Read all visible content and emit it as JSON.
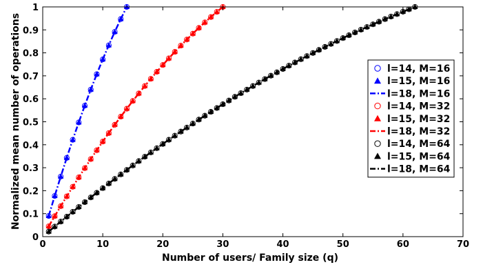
{
  "chart_data": {
    "type": "line",
    "title": "",
    "xlabel": "Number of users/ Family size (q)",
    "ylabel": "Normalized mean number of operations",
    "xlim": [
      0,
      70
    ],
    "ylim": [
      0,
      1
    ],
    "xticks": [
      0,
      10,
      20,
      30,
      40,
      50,
      60,
      70
    ],
    "yticks": [
      0,
      0.1,
      0.2,
      0.3,
      0.4,
      0.5,
      0.6,
      0.7,
      0.8,
      0.9,
      1
    ],
    "grid": false,
    "legend_position": "right",
    "groups": [
      {
        "M": 16,
        "q_max": 14,
        "y_start": 0.09,
        "color": "#0000ff"
      },
      {
        "M": 32,
        "q_max": 30,
        "y_start": 0.045,
        "color": "#ff0000"
      },
      {
        "M": 64,
        "q_max": 62,
        "y_start": 0.022,
        "color": "#000000"
      }
    ],
    "series": [
      {
        "name": "l=14, M=16",
        "group": 0,
        "marker": "circle"
      },
      {
        "name": "l=15, M=16",
        "group": 0,
        "marker": "triangle"
      },
      {
        "name": "l=18, M=16",
        "group": 0,
        "marker": "dashdot-line"
      },
      {
        "name": "l=14, M=32",
        "group": 1,
        "marker": "circle"
      },
      {
        "name": "l=15, M=32",
        "group": 1,
        "marker": "triangle"
      },
      {
        "name": "l=18, M=32",
        "group": 1,
        "marker": "dashdot-line"
      },
      {
        "name": "l=14, M=64",
        "group": 2,
        "marker": "circle"
      },
      {
        "name": "l=15, M=64",
        "group": 2,
        "marker": "triangle"
      },
      {
        "name": "l=18, M=64",
        "group": 2,
        "marker": "dashdot-line"
      }
    ]
  }
}
